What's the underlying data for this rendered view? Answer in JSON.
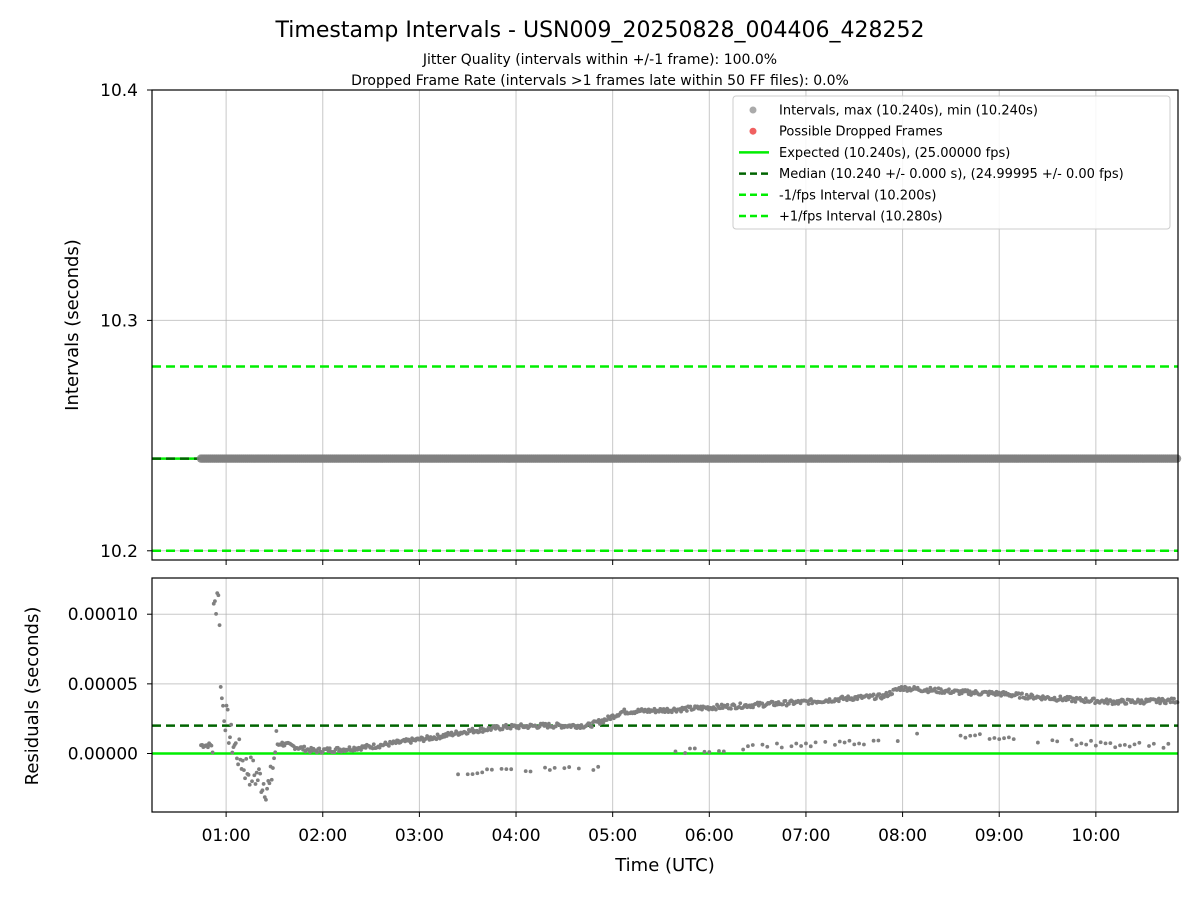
{
  "chart_data": [
    {
      "type": "scatter",
      "title": "Timestamp Intervals - USN009_20250828_004406_428252",
      "subtitle_1": "Jitter Quality (intervals within +/-1 frame): 100.0%",
      "subtitle_2": "Dropped Frame Rate (intervals >1 frames late within 50 FF files): 0.0%",
      "ylabel": "Intervals (seconds)",
      "xlabel": "",
      "xlim": [
        0.233,
        10.85
      ],
      "ylim": [
        10.196,
        10.4
      ],
      "yticks": [
        "10.2",
        "10.3",
        "10.4"
      ],
      "grid": true,
      "legend_position": "top-right",
      "legend": [
        {
          "label": "Intervals, max (10.240s), min (10.240s)",
          "kind": "marker",
          "color": "#aaaaaa"
        },
        {
          "label": "Possible Dropped Frames",
          "kind": "marker",
          "color": "#f06060"
        },
        {
          "label": "Expected (10.240s), (25.00000 fps)",
          "kind": "solid",
          "color": "#00ee00"
        },
        {
          "label": "Median (10.240 +/- 0.000 s), (24.99995 +/- 0.00 fps)",
          "kind": "dashed",
          "color": "#006400"
        },
        {
          "label": "-1/fps Interval (10.200s)",
          "kind": "dashed",
          "color": "#00ee00"
        },
        {
          "label": "+1/fps Interval (10.280s)",
          "kind": "dashed",
          "color": "#00ee00"
        }
      ],
      "series": [
        {
          "name": "Intervals, max (10.240s), min (10.240s)",
          "x_range": [
            0.74,
            10.85
          ],
          "y": 10.24,
          "color": "#808080"
        }
      ],
      "reference_lines": {
        "expected": 10.24,
        "median": 10.24,
        "minus_1_fps": 10.2,
        "plus_1_fps": 10.28
      }
    },
    {
      "type": "scatter",
      "title": "",
      "xlabel": "Time (UTC)",
      "ylabel": "Residuals (seconds)",
      "xlim": [
        0.233,
        10.85
      ],
      "ylim": [
        -4.2e-05,
        0.000126
      ],
      "xticks": [
        "01:00",
        "02:00",
        "03:00",
        "04:00",
        "05:00",
        "06:00",
        "07:00",
        "08:00",
        "09:00",
        "10:00"
      ],
      "yticks": [
        "0.00000",
        "0.00005",
        "0.00010"
      ],
      "grid": true,
      "reference_lines": {
        "expected": 0.0,
        "median": 2e-05
      },
      "series": [
        {
          "name": "",
          "color": "#808080",
          "trend": [
            [
              0.74,
              6e-06
            ],
            [
              0.86,
              6e-06
            ],
            [
              0.87,
              0.0001
            ],
            [
              0.92,
              0.00012
            ],
            [
              0.95,
              4e-05
            ],
            [
              1.05,
              1e-05
            ],
            [
              1.2,
              -1e-05
            ],
            [
              1.35,
              -1.8e-05
            ],
            [
              1.45,
              -2.5e-05
            ],
            [
              1.52,
              8e-06
            ],
            [
              1.7,
              5e-06
            ],
            [
              1.9,
              2e-06
            ],
            [
              2.2,
              3e-06
            ],
            [
              2.5,
              5e-06
            ],
            [
              2.8,
              8e-06
            ],
            [
              3.1,
              1.1e-05
            ],
            [
              3.5,
              1.6e-05
            ],
            [
              3.9,
              1.9e-05
            ],
            [
              4.3,
              2e-05
            ],
            [
              4.75,
              2e-05
            ],
            [
              4.95,
              2.5e-05
            ],
            [
              5.1,
              3e-05
            ],
            [
              5.5,
              3.1e-05
            ],
            [
              6.0,
              3.3e-05
            ],
            [
              6.5,
              3.5e-05
            ],
            [
              7.0,
              3.7e-05
            ],
            [
              7.5,
              4e-05
            ],
            [
              7.8,
              4.1e-05
            ],
            [
              7.98,
              4.7e-05
            ],
            [
              8.2,
              4.6e-05
            ],
            [
              8.6,
              4.4e-05
            ],
            [
              9.0,
              4.3e-05
            ],
            [
              9.3,
              4.1e-05
            ],
            [
              9.7,
              3.9e-05
            ],
            [
              10.2,
              3.7e-05
            ],
            [
              10.85,
              3.8e-05
            ]
          ],
          "lower_band": [
            [
              3.4,
              -1.3e-05
            ],
            [
              3.9,
              -1.3e-05
            ],
            [
              4.2,
              -1.1e-05
            ],
            [
              4.8,
              -1.2e-05
            ],
            [
              5.6,
              2e-06
            ],
            [
              6.2,
              3e-06
            ],
            [
              6.8,
              6e-06
            ],
            [
              7.5,
              8e-06
            ],
            [
              8.0,
              1e-05
            ],
            [
              8.25,
              1.4e-05
            ],
            [
              8.8,
              1.2e-05
            ],
            [
              9.2,
              1e-05
            ],
            [
              9.8,
              8e-06
            ],
            [
              10.3,
              6e-06
            ],
            [
              10.85,
              6e-06
            ]
          ]
        }
      ]
    }
  ]
}
